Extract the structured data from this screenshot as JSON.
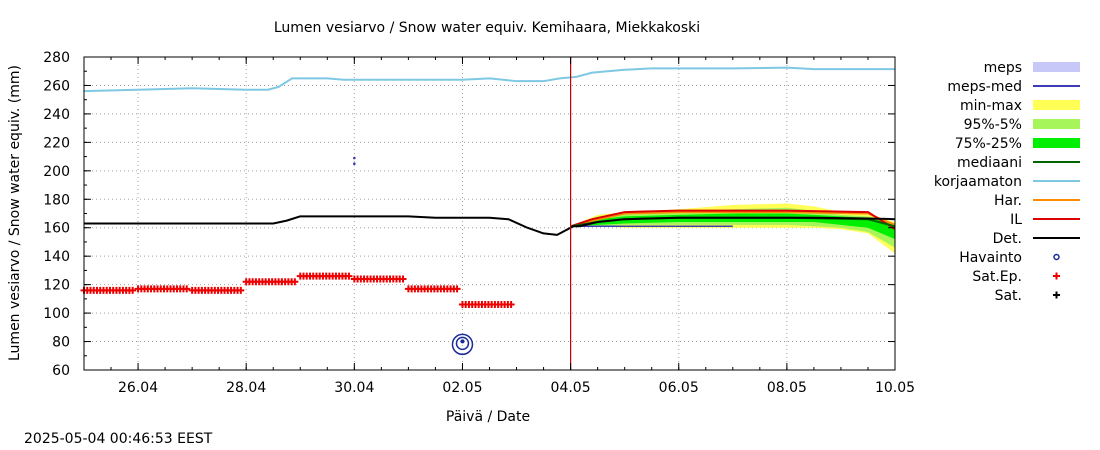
{
  "chart_data": {
    "type": "line",
    "title": "Lumen vesiarvo / Snow water equiv.  Kemihaara, Miekkakoski",
    "xlabel": "Päivä / Date",
    "ylabel": "Lumen vesiarvo / Snow water equiv. (mm)",
    "timestamp": "2025-05-04 00:46:53 EEST",
    "ylim": [
      60,
      280
    ],
    "y_ticks": [
      60,
      80,
      100,
      120,
      140,
      160,
      180,
      200,
      220,
      240,
      260,
      280
    ],
    "xlim_days": [
      25,
      40
    ],
    "x_ticks": [
      {
        "day": 26,
        "label": "26.04"
      },
      {
        "day": 28,
        "label": "28.04"
      },
      {
        "day": 30,
        "label": "30.04"
      },
      {
        "day": 32,
        "label": "02.05"
      },
      {
        "day": 34,
        "label": "04.05"
      },
      {
        "day": 36,
        "label": "06.05"
      },
      {
        "day": 38,
        "label": "08.05"
      },
      {
        "day": 40,
        "label": "10.05"
      }
    ],
    "forecast_start_day": 34.0,
    "legend_position": "right",
    "legend": [
      {
        "key": "meps",
        "label": "meps",
        "kind": "band",
        "color": "#c8c8f8"
      },
      {
        "key": "meps-med",
        "label": "meps-med",
        "kind": "line",
        "color": "#3c3cb4"
      },
      {
        "key": "min-max",
        "label": "min-max",
        "kind": "band",
        "color": "#ffff55"
      },
      {
        "key": "p95-5",
        "label": "95%-5%",
        "kind": "band",
        "color": "#a6f55a"
      },
      {
        "key": "p75-25",
        "label": "75%-25%",
        "kind": "band",
        "color": "#00ee00"
      },
      {
        "key": "mediaani",
        "label": "mediaani",
        "kind": "line",
        "color": "#006400"
      },
      {
        "key": "korjaamaton",
        "label": "korjaamaton",
        "kind": "line",
        "color": "#7ec8e3"
      },
      {
        "key": "har",
        "label": "Har.",
        "kind": "line",
        "color": "#ff8c00"
      },
      {
        "key": "il",
        "label": "IL",
        "kind": "line",
        "color": "#dd0000"
      },
      {
        "key": "det",
        "label": "Det.",
        "kind": "line",
        "color": "#000000"
      },
      {
        "key": "havainto",
        "label": "Havainto",
        "kind": "circle",
        "color": "#1a2a9a"
      },
      {
        "key": "satep",
        "label": "Sat.Ep.",
        "kind": "plus",
        "color": "#ee0000"
      },
      {
        "key": "sat",
        "label": "Sat.",
        "kind": "plus",
        "color": "#000000"
      }
    ],
    "series": {
      "korjaamaton": [
        [
          25,
          256
        ],
        [
          26,
          257
        ],
        [
          27,
          258
        ],
        [
          28,
          257
        ],
        [
          28.4,
          257
        ],
        [
          28.6,
          259
        ],
        [
          28.85,
          265
        ],
        [
          29.5,
          265
        ],
        [
          29.8,
          264
        ],
        [
          31,
          264
        ],
        [
          32,
          264
        ],
        [
          32.5,
          265
        ],
        [
          33,
          263
        ],
        [
          33.5,
          263
        ],
        [
          33.8,
          265
        ],
        [
          34.1,
          266
        ],
        [
          34.4,
          269
        ],
        [
          35,
          271
        ],
        [
          35.5,
          272
        ],
        [
          37,
          272
        ],
        [
          38,
          272.5
        ],
        [
          38.5,
          271.5
        ],
        [
          40,
          271.5
        ]
      ],
      "det": [
        [
          25,
          163
        ],
        [
          28.5,
          163
        ],
        [
          28.75,
          165
        ],
        [
          29,
          168
        ],
        [
          31,
          168
        ],
        [
          31.5,
          167
        ],
        [
          32.5,
          167
        ],
        [
          32.85,
          166
        ],
        [
          33.2,
          160
        ],
        [
          33.5,
          156
        ],
        [
          33.75,
          155
        ],
        [
          34.0,
          160
        ],
        [
          34.05,
          161
        ],
        [
          34.15,
          161
        ],
        [
          34.5,
          164
        ],
        [
          35,
          166
        ],
        [
          36,
          167
        ],
        [
          38,
          167
        ],
        [
          38.5,
          167
        ],
        [
          39.5,
          166.5
        ],
        [
          40,
          166
        ]
      ],
      "il": [
        [
          34.0,
          161
        ],
        [
          34.4,
          166
        ],
        [
          35,
          171
        ],
        [
          36,
          172
        ],
        [
          38,
          172
        ],
        [
          39.5,
          171
        ],
        [
          40,
          159
        ]
      ],
      "har": [
        [
          34.0,
          161
        ],
        [
          34.4,
          165
        ],
        [
          35,
          170
        ],
        [
          36,
          171
        ],
        [
          38,
          171
        ],
        [
          39.5,
          170
        ],
        [
          40,
          162
        ]
      ],
      "mediaani": [
        [
          34.0,
          161
        ],
        [
          34.5,
          164
        ],
        [
          35,
          166
        ],
        [
          36,
          167
        ],
        [
          38,
          167
        ],
        [
          39.5,
          166
        ],
        [
          40,
          161
        ]
      ],
      "meps_med": [
        [
          34.0,
          161
        ],
        [
          37.0,
          161
        ]
      ],
      "minmax_band": [
        [
          34.0,
          161,
          161
        ],
        [
          34.5,
          169,
          161
        ],
        [
          35,
          171,
          160
        ],
        [
          36,
          173,
          160
        ],
        [
          37,
          176,
          160
        ],
        [
          38,
          177,
          160
        ],
        [
          38.5,
          175,
          160
        ],
        [
          39,
          171,
          159
        ],
        [
          39.5,
          169,
          156
        ],
        [
          40,
          164,
          142
        ]
      ],
      "p95_band": [
        [
          34.0,
          161,
          161
        ],
        [
          34.5,
          168,
          161
        ],
        [
          35,
          170,
          162
        ],
        [
          36,
          171,
          162
        ],
        [
          37,
          173,
          162
        ],
        [
          38,
          174,
          162
        ],
        [
          38.5,
          172,
          161
        ],
        [
          39,
          169,
          160
        ],
        [
          39.5,
          168,
          157
        ],
        [
          40,
          163,
          146
        ]
      ],
      "p75_band": [
        [
          34.0,
          161,
          161
        ],
        [
          34.5,
          166,
          162
        ],
        [
          35,
          168,
          163
        ],
        [
          36,
          169,
          164
        ],
        [
          37,
          170,
          164
        ],
        [
          38,
          170,
          164
        ],
        [
          38.5,
          169,
          164
        ],
        [
          39,
          168,
          162
        ],
        [
          39.5,
          167,
          160
        ],
        [
          40,
          163,
          152
        ]
      ],
      "satep_segments": [
        {
          "x0": 25.0,
          "x1": 25.95,
          "y": 116
        },
        {
          "x0": 26.0,
          "x1": 26.95,
          "y": 117
        },
        {
          "x0": 27.0,
          "x1": 27.95,
          "y": 116
        },
        {
          "x0": 28.0,
          "x1": 28.95,
          "y": 122
        },
        {
          "x0": 29.0,
          "x1": 29.95,
          "y": 126
        },
        {
          "x0": 30.0,
          "x1": 30.95,
          "y": 124
        },
        {
          "x0": 31.0,
          "x1": 31.95,
          "y": 117
        },
        {
          "x0": 32.0,
          "x1": 32.95,
          "y": 106
        }
      ],
      "havainto": [
        {
          "x": 32.0,
          "y": 78
        }
      ],
      "meps_markers": [
        {
          "x": 30.0,
          "y": 209
        },
        {
          "x": 30.0,
          "y": 205
        }
      ]
    }
  }
}
